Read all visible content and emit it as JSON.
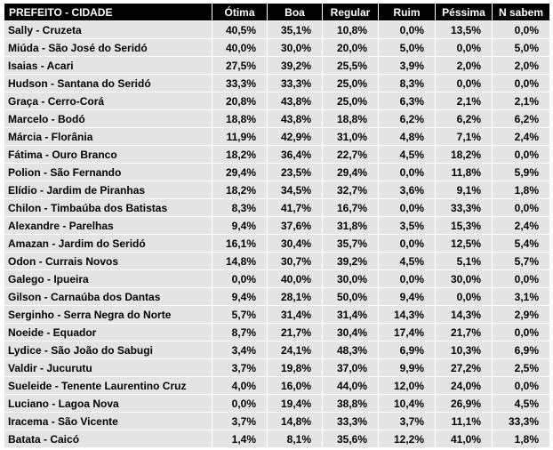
{
  "table": {
    "header": [
      "PREFEITO - CIDADE",
      "Ótima",
      "Boa",
      "Regular",
      "Ruim",
      "Péssima",
      "N sabem"
    ],
    "rows": [
      [
        "Sally - Cruzeta",
        "40,5%",
        "35,1%",
        "10,8%",
        "0,0%",
        "13,5%",
        "0,0%"
      ],
      [
        "Miúda - São José do Seridó",
        "40,0%",
        "30,0%",
        "20,0%",
        "5,0%",
        "0,0%",
        "5,0%"
      ],
      [
        "Isaias - Acari",
        "27,5%",
        "39,2%",
        "25,5%",
        "3,9%",
        "2,0%",
        "2,0%"
      ],
      [
        "Hudson - Santana do Seridó",
        "33,3%",
        "33,3%",
        "25,0%",
        "8,3%",
        "0,0%",
        "0,0%"
      ],
      [
        "Graça - Cerro-Corá",
        "20,8%",
        "43,8%",
        "25,0%",
        "6,3%",
        "2,1%",
        "2,1%"
      ],
      [
        "Marcelo - Bodó",
        "18,8%",
        "43,8%",
        "18,8%",
        "6,2%",
        "6,2%",
        "6,2%"
      ],
      [
        "Márcia - Florânia",
        "11,9%",
        "42,9%",
        "31,0%",
        "4,8%",
        "7,1%",
        "2,4%"
      ],
      [
        "Fátima - Ouro Branco",
        "18,2%",
        "36,4%",
        "22,7%",
        "4,5%",
        "18,2%",
        "0,0%"
      ],
      [
        "Polion - São Fernando",
        "29,4%",
        "23,5%",
        "29,4%",
        "0,0%",
        "11,8%",
        "5,9%"
      ],
      [
        "Elídio - Jardim de Piranhas",
        "18,2%",
        "34,5%",
        "32,7%",
        "3,6%",
        "9,1%",
        "1,8%"
      ],
      [
        "Chilon - Timbaúba dos Batistas",
        "8,3%",
        "41,7%",
        "16,7%",
        "0,0%",
        "33,3%",
        "0,0%"
      ],
      [
        "Alexandre - Parelhas",
        "9,4%",
        "37,6%",
        "31,8%",
        "3,5%",
        "15,3%",
        "2,4%"
      ],
      [
        "Amazan - Jardim do Seridó",
        "16,1%",
        "30,4%",
        "35,7%",
        "0,0%",
        "12,5%",
        "5,4%"
      ],
      [
        "Odon - Currais Novos",
        "14,8%",
        "30,7%",
        "39,2%",
        "4,5%",
        "5,1%",
        "5,7%"
      ],
      [
        "Galego - Ipueira",
        "0,0%",
        "40,0%",
        "30,0%",
        "0,0%",
        "30,0%",
        "0,0%"
      ],
      [
        "Gilson - Carnaúba dos Dantas",
        "9,4%",
        "28,1%",
        "50,0%",
        "9,4%",
        "0,0%",
        "3,1%"
      ],
      [
        "Serginho - Serra Negra do Norte",
        "5,7%",
        "31,4%",
        "31,4%",
        "14,3%",
        "14,3%",
        "2,9%"
      ],
      [
        "Noeide - Equador",
        "8,7%",
        "21,7%",
        "30,4%",
        "17,4%",
        "21,7%",
        "0,0%"
      ],
      [
        "Lydice - São João do Sabugi",
        "3,4%",
        "24,1%",
        "48,3%",
        "6,9%",
        "10,3%",
        "6,9%"
      ],
      [
        "Valdir - Jucurutu",
        "3,7%",
        "19,8%",
        "37,0%",
        "9,9%",
        "27,2%",
        "2,5%"
      ],
      [
        "Sueleide - Tenente Laurentino Cruz",
        "4,0%",
        "16,0%",
        "44,0%",
        "12,0%",
        "24,0%",
        "0,0%"
      ],
      [
        "Luciano - Lagoa Nova",
        "0,0%",
        "19,4%",
        "38,8%",
        "10,4%",
        "26,9%",
        "4,5%"
      ],
      [
        "Iracema - São Vicente",
        "3,7%",
        "14,8%",
        "33,3%",
        "3,7%",
        "11,1%",
        "33,3%"
      ],
      [
        "Batata - Caicó",
        "1,4%",
        "8,1%",
        "35,6%",
        "12,2%",
        "41,0%",
        "1,8%"
      ]
    ]
  }
}
